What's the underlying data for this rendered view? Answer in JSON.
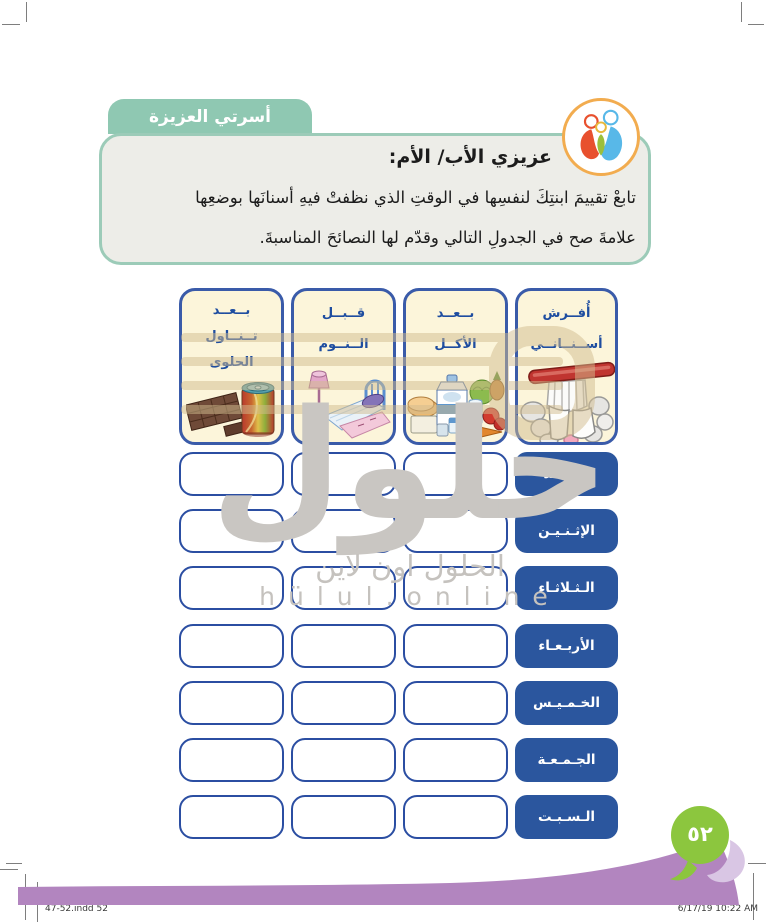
{
  "page": {
    "badge_label": "أسرتي العزيزة",
    "note": {
      "title": "عزيزي الأب/ الأم:",
      "body_line1": "تابعْ تقييمَ ابنتِكَ لنفسِها في الوقتِ الذي نظفتْ فيهِ أسنانَها بوضعِها",
      "body_line2": "علامةَ صح في الجدولِ التالي وقدّم لها النصائحَ المناسبةَ."
    },
    "page_number": "٥٢",
    "footer": {
      "left": "47-52.indd   52",
      "right": "6/17/19   10:22 AM"
    }
  },
  "table": {
    "columns": [
      {
        "id": "brush-my-teeth",
        "icon": "toothbrush",
        "label_lines": [
          "أُفــرش",
          "أســنــانــي"
        ]
      },
      {
        "id": "after-eating",
        "icon": "food",
        "label_lines": [
          "بــعــد",
          "الأكــل"
        ]
      },
      {
        "id": "before-sleep",
        "icon": "bed",
        "label_lines": [
          "قــبــل",
          "الــنــوم"
        ]
      },
      {
        "id": "after-sweets",
        "icon": "sweets",
        "label_lines": [
          "بــعــد",
          "تــنــاول",
          "الحلوى"
        ]
      }
    ],
    "days": [
      "الأحـــد",
      "الإثـنـيـن",
      "الـثـلاثـاء",
      "الأربـعـاء",
      "الخـمـيـس",
      "الجـمـعـة",
      "الـسـبـت"
    ]
  },
  "watermark": {
    "big": "حلول",
    "arabic": "الحلول اون لاين",
    "latin": "hülul.online"
  },
  "colors": {
    "tab_green": "#8FC8B2",
    "bubble_border": "#9CCBB8",
    "header_border": "#3A5BA9",
    "header_bg": "#FCF5DA",
    "header_text": "#1E4DA0",
    "day_fill": "#2B569E",
    "cell_border": "#2B4EA2",
    "bar_purple": "#B285BF",
    "balloon_green": "#8CC63E",
    "swoosh_lilac": "#D9C6E4",
    "icon_ring_orange": "#F2AC4F"
  }
}
